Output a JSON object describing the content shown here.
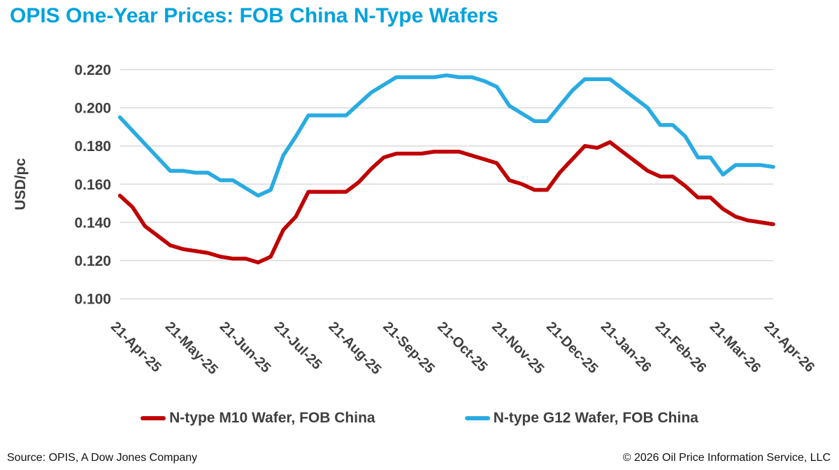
{
  "title": "OPIS One-Year Prices: FOB China N-Type Wafers",
  "footer": {
    "source": "Source: OPIS, A Dow Jones Company",
    "copyright": "© 2026 Oil Price Information Service, LLC"
  },
  "colors": {
    "title": "#00A2DC",
    "grid": "#D9D9D9",
    "axis_text": "#3F3F3F"
  },
  "chart_data": {
    "type": "line",
    "title": "OPIS One-Year Prices: FOB China N-Type Wafers",
    "xlabel": "",
    "ylabel": "USD/pc",
    "ylim": [
      0.1,
      0.22
    ],
    "yticks": [
      0.22,
      0.2,
      0.18,
      0.16,
      0.14,
      0.12,
      0.1
    ],
    "ytick_decimals": 3,
    "x_tick_labels": [
      "21-Apr-25",
      "21-May-25",
      "21-Jun-25",
      "21-Jul-25",
      "21-Aug-25",
      "21-Sep-25",
      "21-Oct-25",
      "21-Nov-25",
      "21-Dec-25",
      "21-Jan-26",
      "21-Feb-26",
      "21-Mar-26",
      "21-Apr-26"
    ],
    "x_resolution": "weekly",
    "grid": "horizontal-only",
    "legend_position": "bottom",
    "series": [
      {
        "name": "N-type M10 Wafer, FOB China",
        "color": "#C00000",
        "values": [
          0.154,
          0.148,
          0.138,
          0.133,
          0.128,
          0.126,
          0.125,
          0.124,
          0.122,
          0.121,
          0.121,
          0.119,
          0.122,
          0.136,
          0.143,
          0.156,
          0.156,
          0.156,
          0.156,
          0.161,
          0.168,
          0.174,
          0.176,
          0.176,
          0.176,
          0.177,
          0.177,
          0.177,
          0.175,
          0.173,
          0.171,
          0.162,
          0.16,
          0.157,
          0.157,
          0.166,
          0.173,
          0.18,
          0.179,
          0.182,
          0.177,
          0.172,
          0.167,
          0.164,
          0.164,
          0.159,
          0.153,
          0.153,
          0.147,
          0.143,
          0.141,
          0.14,
          0.139
        ]
      },
      {
        "name": "N-type G12 Wafer, FOB China",
        "color": "#29ABE2",
        "values": [
          0.195,
          0.188,
          0.181,
          0.174,
          0.167,
          0.167,
          0.166,
          0.166,
          0.162,
          0.162,
          0.158,
          0.154,
          0.157,
          0.175,
          0.185,
          0.196,
          0.196,
          0.196,
          0.196,
          0.202,
          0.208,
          0.212,
          0.216,
          0.216,
          0.216,
          0.216,
          0.217,
          0.216,
          0.216,
          0.214,
          0.211,
          0.201,
          0.197,
          0.193,
          0.193,
          0.201,
          0.209,
          0.215,
          0.215,
          0.215,
          0.21,
          0.205,
          0.2,
          0.191,
          0.191,
          0.185,
          0.174,
          0.174,
          0.165,
          0.17,
          0.17,
          0.17,
          0.169
        ]
      }
    ]
  }
}
